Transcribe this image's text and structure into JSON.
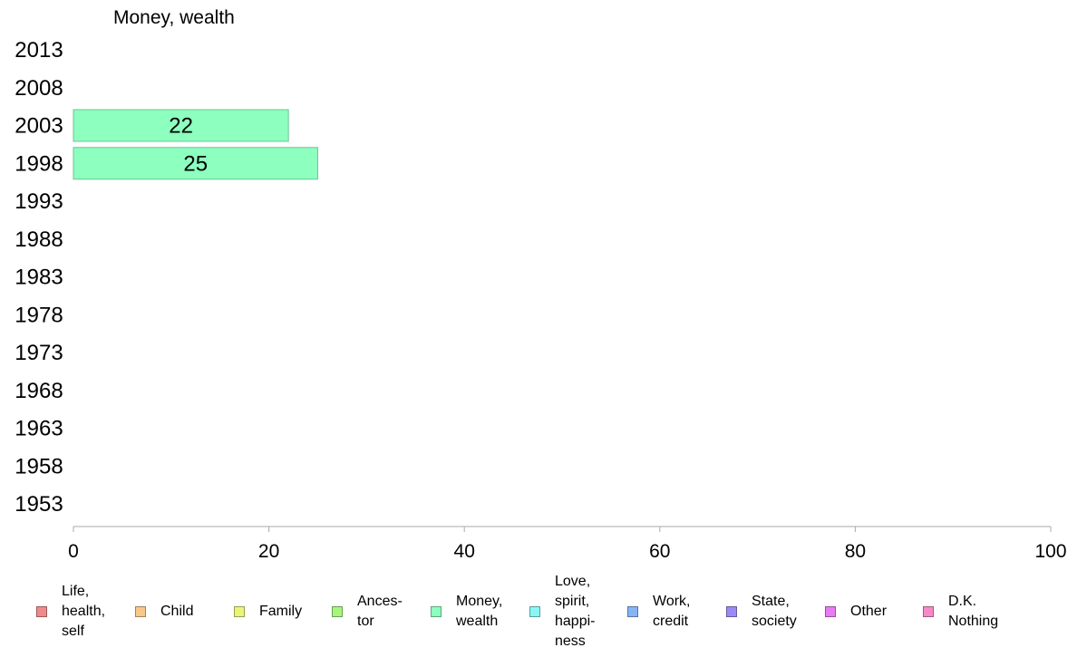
{
  "chart_data": {
    "type": "bar",
    "orientation": "horizontal",
    "title": "Money, wealth",
    "categories": [
      "2013",
      "2008",
      "2003",
      "1998",
      "1993",
      "1988",
      "1983",
      "1978",
      "1973",
      "1968",
      "1963",
      "1958",
      "1953"
    ],
    "series": [
      {
        "name": "Money, wealth",
        "color": "#8dffbe",
        "values": [
          null,
          null,
          22,
          25,
          null,
          null,
          null,
          null,
          null,
          null,
          null,
          null,
          null
        ]
      }
    ],
    "xlim": [
      0,
      100
    ],
    "xticks": [
      0,
      20,
      40,
      60,
      80,
      100
    ],
    "xlabel": "",
    "ylabel": "",
    "grid": false,
    "legend_position": "bottom"
  },
  "legend": {
    "items": [
      {
        "label": "Life,\nhealth,\nself",
        "color": "#f08a8a"
      },
      {
        "label": "Child",
        "color": "#f8c88a"
      },
      {
        "label": "Family",
        "color": "#e8f57a"
      },
      {
        "label": "Ances-\ntor",
        "color": "#a5f57d"
      },
      {
        "label": "Money,\nwealth",
        "color": "#8dffbe"
      },
      {
        "label": "Love,\nspirit,\nhappi-\nness",
        "color": "#8af5f5"
      },
      {
        "label": "Work,\ncredit",
        "color": "#87b4f5"
      },
      {
        "label": "State,\nsociety",
        "color": "#9b8af5"
      },
      {
        "label": "Other",
        "color": "#e87af5"
      },
      {
        "label": "D.K.\nNothing",
        "color": "#f58ac8"
      }
    ]
  }
}
